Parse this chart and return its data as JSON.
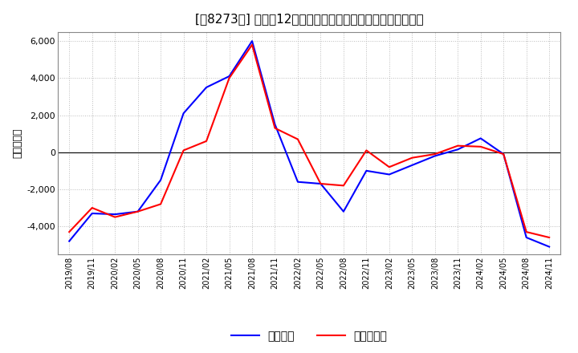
{
  "title": "[〰8273〱] 利益だ12か月移動合計の対前年同期増減額の推移",
  "ylabel": "（百万円）",
  "ylim": [
    -5500,
    6500
  ],
  "yticks": [
    -4000,
    -2000,
    0,
    2000,
    4000,
    6000
  ],
  "background_color": "#ffffff",
  "grid_color": "#bbbbbb",
  "x_labels": [
    "2019/08",
    "2019/11",
    "2020/02",
    "2020/05",
    "2020/08",
    "2020/11",
    "2021/02",
    "2021/05",
    "2021/08",
    "2021/11",
    "2022/02",
    "2022/05",
    "2022/08",
    "2022/11",
    "2023/02",
    "2023/05",
    "2023/08",
    "2023/11",
    "2024/02",
    "2024/05",
    "2024/08",
    "2024/11"
  ],
  "series_operating": [
    -4800,
    -3300,
    -3350,
    -3200,
    -1500,
    2100,
    3500,
    4100,
    6000,
    1500,
    -1600,
    -1700,
    -3200,
    -1000,
    -1200,
    -700,
    -200,
    150,
    750,
    -100,
    -4600,
    -5100
  ],
  "series_net": [
    -4300,
    -3000,
    -3500,
    -3200,
    -2800,
    100,
    600,
    4000,
    5800,
    1300,
    700,
    -1700,
    -1800,
    100,
    -800,
    -300,
    -100,
    350,
    300,
    -100,
    -4300,
    -4600
  ],
  "color_operating": "#0000ff",
  "color_net": "#ff0000",
  "label_operating": "経常利益",
  "label_net": "当期純利益",
  "title_fontsize": 11,
  "axis_fontsize": 8,
  "legend_fontsize": 10
}
